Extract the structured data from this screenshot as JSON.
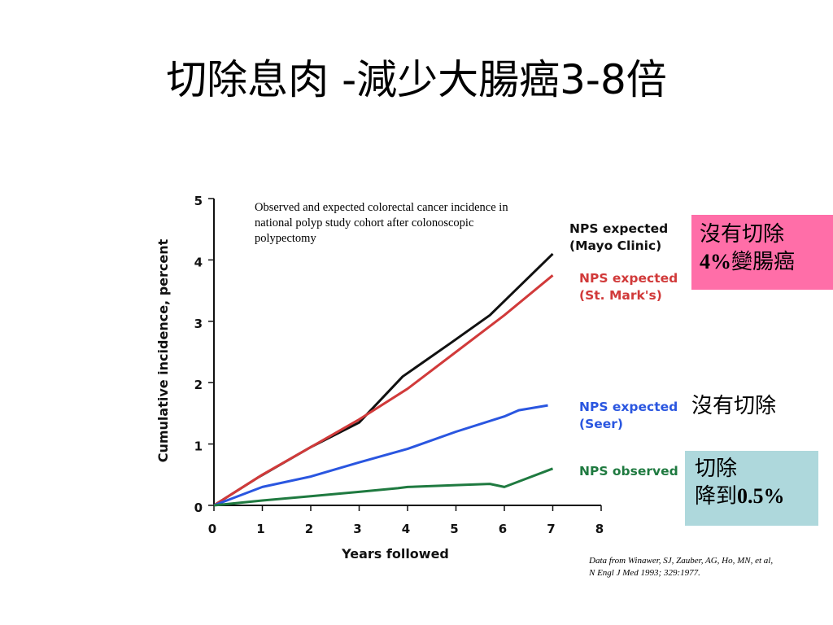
{
  "slide": {
    "title": "切除息肉 -減少大腸癌3-8倍",
    "caption": "Observed and expected colorectal cancer incidence in national polyp study cohort after colonoscopic polypectomy",
    "source": "Data from Winawer, SJ, Zauber, AG, Ho, MN, et al, N Engl J Med 1993; 329:1977."
  },
  "callouts": {
    "no_removal_4pct": {
      "line1": "沒有切除",
      "pct": "4%",
      "rest": "變腸癌"
    },
    "no_removal": "沒有切除",
    "removal": {
      "line1": "切除",
      "prefix": "降到",
      "pct": "0.5%"
    },
    "colors": {
      "pink": "#ff6ea8",
      "blue": "#aed8dc"
    }
  },
  "chart_data": {
    "type": "line",
    "xlabel": "Years followed",
    "ylabel": "Cumulative incidence, percent",
    "xlim": [
      0,
      8
    ],
    "ylim": [
      0,
      5
    ],
    "xticks": [
      "0",
      "1",
      "2",
      "3",
      "4",
      "5",
      "6",
      "7",
      "8"
    ],
    "yticks": [
      "0",
      "1",
      "2",
      "3",
      "4",
      "5"
    ],
    "grid": false,
    "legend": "inline-right",
    "series": [
      {
        "name": "NPS expected (Mayo Clinic)",
        "label_lines": [
          "NPS expected",
          "(Mayo Clinic)"
        ],
        "color": "#111111",
        "x": [
          0,
          0.9,
          2,
          3,
          3.9,
          4.9,
          5.7,
          7
        ],
        "y": [
          0,
          0.45,
          0.95,
          1.35,
          2.1,
          2.65,
          3.1,
          4.1
        ]
      },
      {
        "name": "NPS expected (St. Mark's)",
        "label_lines": [
          "NPS expected",
          "(St. Mark's)"
        ],
        "color": "#d13a3a",
        "x": [
          0,
          1,
          2,
          3,
          4,
          5,
          6,
          7
        ],
        "y": [
          0,
          0.5,
          0.95,
          1.4,
          1.9,
          2.5,
          3.1,
          3.75
        ]
      },
      {
        "name": "NPS expected (Seer)",
        "label_lines": [
          "NPS expected",
          "(Seer)"
        ],
        "color": "#2a56e0",
        "x": [
          0,
          1,
          2,
          3,
          4,
          5,
          6,
          6.3,
          6.9
        ],
        "y": [
          0,
          0.3,
          0.47,
          0.7,
          0.92,
          1.2,
          1.45,
          1.55,
          1.63
        ]
      },
      {
        "name": "NPS observed",
        "label_lines": [
          "NPS observed"
        ],
        "color": "#1f7a40",
        "x": [
          0,
          1,
          2,
          3,
          3.8,
          4,
          5,
          5.7,
          6,
          7
        ],
        "y": [
          0,
          0.08,
          0.15,
          0.22,
          0.28,
          0.3,
          0.33,
          0.35,
          0.3,
          0.6
        ]
      }
    ]
  }
}
